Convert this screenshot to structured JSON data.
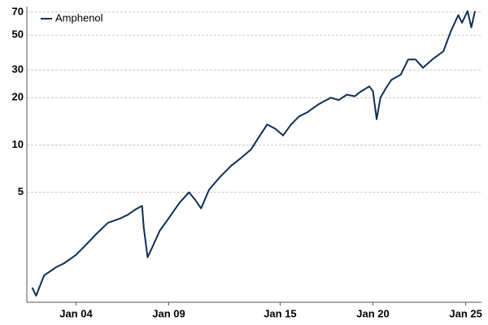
{
  "chart_data": {
    "type": "line",
    "series": [
      {
        "name": "Amphenol",
        "color": "#0e2f56",
        "x": [
          2001.64,
          2001.85,
          2002.28,
          2002.93,
          2003.36,
          2004.0,
          2004.64,
          2005.07,
          2005.72,
          2006.36,
          2006.79,
          2007.22,
          2007.56,
          2007.65,
          2007.86,
          2008.08,
          2008.51,
          2008.98,
          2009.58,
          2010.09,
          2010.44,
          2010.74,
          2011.17,
          2011.73,
          2012.37,
          2012.8,
          2013.44,
          2013.87,
          2014.3,
          2014.73,
          2015.16,
          2015.59,
          2016.02,
          2016.45,
          2017.09,
          2017.73,
          2018.16,
          2018.59,
          2019.02,
          2019.3,
          2019.8,
          2020.0,
          2020.2,
          2020.4,
          2020.7,
          2021.0,
          2021.5,
          2021.9,
          2022.3,
          2022.7,
          2023.2,
          2023.8,
          2024.2,
          2024.6,
          2024.8,
          2025.1,
          2025.3,
          2025.5
        ],
        "values": [
          1.24,
          1.1,
          1.48,
          1.67,
          1.77,
          2.0,
          2.39,
          2.7,
          3.2,
          3.4,
          3.6,
          3.9,
          4.1,
          3.0,
          1.93,
          2.2,
          2.85,
          3.4,
          4.3,
          5.0,
          4.45,
          3.95,
          5.2,
          6.2,
          7.4,
          8.1,
          9.4,
          11.3,
          13.5,
          12.7,
          11.5,
          13.5,
          15.2,
          16.1,
          18.2,
          20,
          19.3,
          20.9,
          20.4,
          21.7,
          23.6,
          22,
          14.6,
          20,
          23,
          26,
          28,
          35,
          35,
          31,
          35,
          39.5,
          53,
          67,
          60,
          71,
          56,
          71
        ]
      }
    ],
    "log_scale_y": true,
    "grid": true,
    "legend_position": "top-left",
    "xlim": [
      2001.35,
      2025.85
    ],
    "xticks": [
      {
        "value": 2004,
        "label": "Jan 04"
      },
      {
        "value": 2009,
        "label": "Jan 09"
      },
      {
        "value": 2015,
        "label": "Jan 15"
      },
      {
        "value": 2020,
        "label": "Jan 20"
      },
      {
        "value": 2025,
        "label": "Jan 25"
      }
    ],
    "ylim": [
      1,
      76
    ],
    "yticks": [
      5,
      10,
      20,
      30,
      50,
      70
    ]
  }
}
